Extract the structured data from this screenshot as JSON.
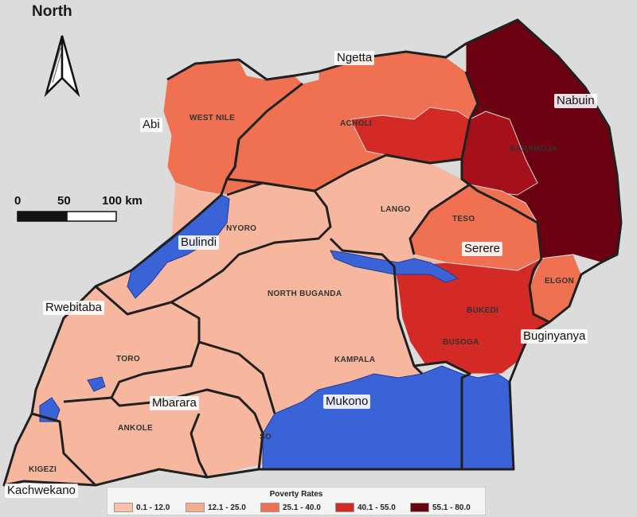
{
  "north_label": "North",
  "scale": {
    "ticks": [
      "0",
      "50",
      "100 km"
    ]
  },
  "cities": [
    "Ngetta",
    "Nabuin",
    "Abi",
    "Bulindi",
    "Serere",
    "Rwebitaba",
    "Buginyanya",
    "Mbarara",
    "Mukono",
    "Kachwekano"
  ],
  "regions": [
    "WEST NILE",
    "ACHOLI",
    "KARAMOJA",
    "LANGO",
    "TESO",
    "NYORO",
    "ELGON",
    "NORTH BUGANDA",
    "BUKEDI",
    "TORO",
    "BUSOGA",
    "KAMPALA",
    "ANKOLE",
    "SO",
    "KIGEZI"
  ],
  "legend": {
    "title": "Poverty Rates",
    "items": [
      {
        "label": "0.1 - 12.0",
        "color": "#f9c0aa"
      },
      {
        "label": "12.1 - 25.0",
        "color": "#f5ad92"
      },
      {
        "label": "25.1 - 40.0",
        "color": "#f07052"
      },
      {
        "label": "40.1 - 55.0",
        "color": "#d42a26"
      },
      {
        "label": "55.1 - 80.0",
        "color": "#6b0010"
      }
    ]
  },
  "colors": {
    "water": "#3a63d8",
    "background": "#dcdcdc"
  }
}
